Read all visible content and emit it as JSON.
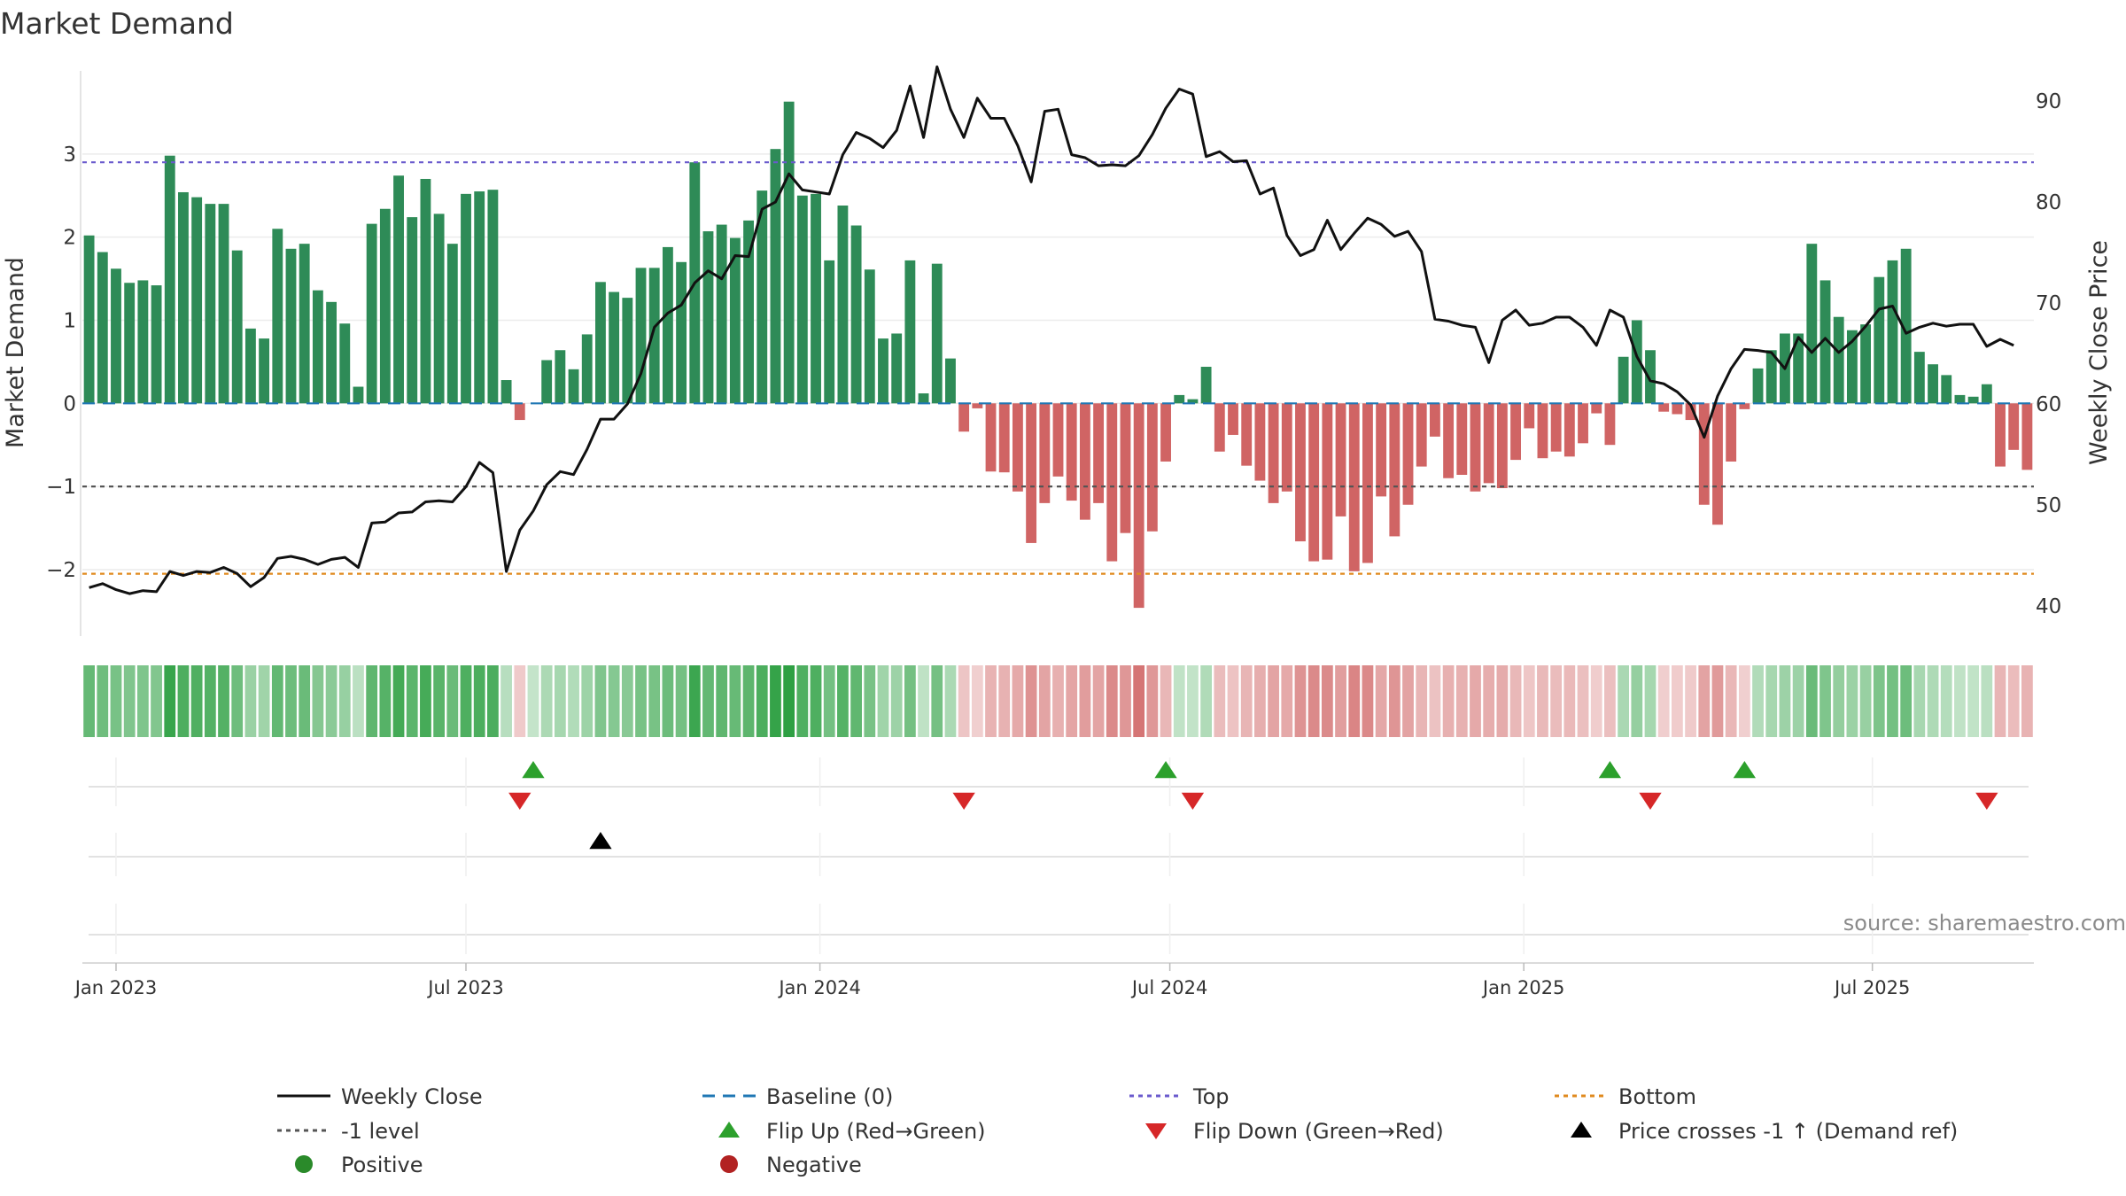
{
  "chart_data": {
    "type": "bar",
    "title": "Market Demand",
    "ylabel_left": "Market Demand",
    "ylabel_right": "Weekly Close Price",
    "source": "source: sharemaestro.com",
    "left_axis": {
      "ylim": [
        -2.8,
        4.0
      ],
      "ticks": [
        -2,
        -1,
        0,
        1,
        2,
        3
      ],
      "tick_labels": [
        "−2",
        "−1",
        "0",
        "1",
        "2",
        "3"
      ]
    },
    "right_axis": {
      "ylim": [
        37,
        93
      ],
      "ticks": [
        40,
        50,
        60,
        70,
        80,
        90
      ],
      "tick_labels": [
        "40",
        "50",
        "60",
        "70",
        "80",
        "90"
      ]
    },
    "x_axis": {
      "ticks": [
        {
          "label": "Jan 2023",
          "week": 2
        },
        {
          "label": "Jul 2023",
          "week": 28
        },
        {
          "label": "Jan 2024",
          "week": 54.3
        },
        {
          "label": "Jul 2024",
          "week": 80.3
        },
        {
          "label": "Jan 2025",
          "week": 106.6
        },
        {
          "label": "Jul 2025",
          "week": 132.5
        }
      ]
    },
    "reference_lines": [
      {
        "name": "Baseline (0)",
        "value": 0,
        "color": "#1f77b4",
        "style": "dashed"
      },
      {
        "name": "Top",
        "value": 2.9,
        "color": "#6a5acd",
        "style": "dotted"
      },
      {
        "name": "-1 level",
        "value": -1,
        "color": "#555555",
        "style": "dotted"
      },
      {
        "name": "Bottom",
        "value": -2.05,
        "color": "#e08a1e",
        "style": "dotted"
      }
    ],
    "series": [
      {
        "name": "Market Demand",
        "kind": "bar",
        "color_positive": "#2e8b57",
        "color_negative": "#cd5c5c",
        "values": [
          2.02,
          1.82,
          1.62,
          1.45,
          1.48,
          1.42,
          2.98,
          2.54,
          2.48,
          2.4,
          2.4,
          1.84,
          0.9,
          0.78,
          2.1,
          1.86,
          1.92,
          1.36,
          1.22,
          0.96,
          0.2,
          2.16,
          2.34,
          2.74,
          2.24,
          2.7,
          2.28,
          1.92,
          2.52,
          2.55,
          2.57,
          0.28,
          -0.2,
          0.0,
          0.52,
          0.64,
          0.41,
          0.83,
          1.46,
          1.34,
          1.27,
          1.63,
          1.63,
          1.88,
          1.7,
          2.9,
          2.07,
          2.15,
          1.99,
          2.2,
          2.56,
          3.06,
          3.63,
          2.5,
          2.52,
          1.72,
          2.38,
          2.14,
          1.61,
          0.78,
          0.84,
          1.72,
          0.12,
          1.68,
          0.54,
          -0.34,
          -0.06,
          -0.82,
          -0.83,
          -1.06,
          -1.68,
          -1.2,
          -0.88,
          -1.17,
          -1.4,
          -1.2,
          -1.9,
          -1.56,
          -2.46,
          -1.54,
          -0.7,
          0.1,
          0.05,
          0.44,
          -0.58,
          -0.38,
          -0.75,
          -0.93,
          -1.2,
          -1.06,
          -1.66,
          -1.9,
          -1.88,
          -1.36,
          -2.02,
          -1.92,
          -1.12,
          -1.6,
          -1.22,
          -0.76,
          -0.4,
          -0.9,
          -0.86,
          -1.06,
          -0.96,
          -1.02,
          -0.68,
          -0.3,
          -0.66,
          -0.58,
          -0.64,
          -0.48,
          -0.12,
          -0.5,
          0.56,
          1.0,
          0.64,
          -0.1,
          -0.13,
          -0.2,
          -1.22,
          -1.46,
          -0.7,
          -0.07,
          0.42,
          0.64,
          0.84,
          0.84,
          1.92,
          1.48,
          1.04,
          0.88,
          0.95,
          1.52,
          1.72,
          1.86,
          0.62,
          0.47,
          0.34,
          0.1,
          0.08,
          0.23,
          -0.76,
          -0.56,
          -0.8
        ]
      },
      {
        "name": "Weekly Close",
        "kind": "line",
        "color": "#111111",
        "values": [
          41.8,
          42.2,
          41.6,
          41.2,
          41.5,
          41.4,
          43.4,
          43.0,
          43.4,
          43.3,
          43.8,
          43.2,
          41.9,
          42.8,
          44.7,
          44.9,
          44.6,
          44.1,
          44.6,
          44.8,
          43.8,
          48.2,
          48.3,
          49.2,
          49.3,
          50.3,
          50.4,
          50.3,
          51.8,
          54.2,
          53.2,
          43.4,
          47.5,
          49.4,
          52.0,
          53.3,
          53.0,
          55.5,
          58.5,
          58.5,
          60.0,
          63.0,
          67.6,
          69.0,
          69.8,
          72.0,
          73.2,
          72.4,
          74.7,
          74.6,
          79.3,
          80.0,
          82.8,
          81.2,
          81.0,
          80.8,
          84.7,
          86.9,
          86.3,
          85.4,
          87.1,
          91.5,
          86.4,
          93.4,
          89.2,
          86.4,
          90.3,
          88.3,
          88.3,
          85.6,
          82.0,
          89.0,
          89.2,
          84.7,
          84.4,
          83.6,
          83.7,
          83.6,
          84.6,
          86.7,
          89.3,
          91.2,
          90.7,
          84.5,
          85.0,
          84.0,
          84.1,
          80.8,
          81.4,
          76.7,
          74.7,
          75.3,
          78.2,
          75.3,
          76.9,
          78.4,
          77.8,
          76.6,
          77.1,
          75.1,
          68.4,
          68.2,
          67.8,
          67.6,
          64.1,
          68.3,
          69.3,
          67.8,
          68.0,
          68.6,
          68.6,
          67.6,
          65.8,
          69.3,
          68.6,
          64.7,
          62.3,
          62.0,
          61.2,
          59.9,
          56.7,
          60.8,
          63.5,
          65.4,
          65.3,
          65.1,
          63.5,
          66.6,
          65.1,
          66.5,
          65.1,
          66.2,
          67.7,
          69.4,
          69.7,
          67.0,
          67.6,
          68.0,
          67.7,
          67.9,
          67.9,
          65.7,
          66.4,
          65.8
        ]
      }
    ],
    "heat_strip": {
      "name": "Demand intensity strip",
      "note": "one cell per week, colour shade follows demand value"
    },
    "signal_rows": [
      {
        "name": "Flip markers",
        "flip_up_weeks": [
          33,
          80,
          113,
          123
        ],
        "flip_down_weeks": [
          32,
          65,
          82,
          116,
          141
        ]
      },
      {
        "name": "Price crosses -1 markers",
        "cross_up_weeks": [
          38
        ]
      },
      {
        "name": "Empty row"
      }
    ],
    "legend": {
      "placement": "bottom",
      "items": [
        {
          "label": "Weekly Close",
          "symbol": "line",
          "color": "#111111"
        },
        {
          "label": "Baseline (0)",
          "symbol": "dashed-line",
          "color": "#1f77b4"
        },
        {
          "label": "Top",
          "symbol": "dotted-line",
          "color": "#6a5acd"
        },
        {
          "label": "Bottom",
          "symbol": "dotted-line",
          "color": "#e08a1e"
        },
        {
          "label": "-1 level",
          "symbol": "dotted-line",
          "color": "#555555"
        },
        {
          "label": "Flip Up (Red→Green)",
          "symbol": "triangle-up",
          "color": "#2ca02c"
        },
        {
          "label": "Flip Down (Green→Red)",
          "symbol": "triangle-down",
          "color": "#d62728"
        },
        {
          "label": "Price crosses -1 ↑ (Demand ref)",
          "symbol": "triangle-up",
          "color": "#000000"
        },
        {
          "label": "Positive",
          "symbol": "circle",
          "color": "#2a8a2a"
        },
        {
          "label": "Negative",
          "symbol": "circle",
          "color": "#b22222"
        }
      ]
    }
  }
}
